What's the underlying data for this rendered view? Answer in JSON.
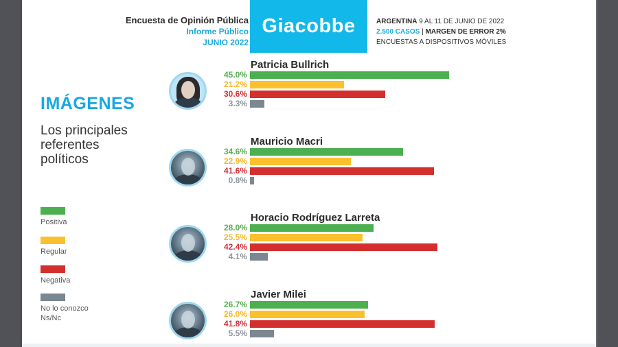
{
  "header": {
    "left_line1": "Encuesta de Opinión Pública",
    "left_line2": "Informe Público",
    "left_line3": "JUNIO 2022",
    "brand": "Giacobbe",
    "right_line1_bold": "ARGENTINA",
    "right_line1_rest": " 9 AL 11 DE JUNIO DE 2022",
    "right_line2_cyan": "2.500 CASOS",
    "right_line2_sep": " | ",
    "right_line2_bold": "MARGEN DE ERROR 2%",
    "right_line3": "ENCUESTAS A DISPOSITIVOS MÓVILES"
  },
  "section": {
    "title": "IMÁGENES",
    "subtitle_lines": [
      "Los principales",
      "referentes",
      "políticos"
    ]
  },
  "colors": {
    "positiva": "#4caf50",
    "regular": "#fbc02d",
    "negativa": "#d32f2f",
    "ns_nc": "#7b8791",
    "brand": "#12b8ea",
    "accent_text": "#18a8e2",
    "pct_positiva": "#5aae52",
    "pct_regular": "#f5b92a",
    "pct_negativa": "#d0323a",
    "pct_ns_nc": "#8c959c"
  },
  "legend": [
    {
      "key": "positiva",
      "label": "Positiva"
    },
    {
      "key": "regular",
      "label": "Regular"
    },
    {
      "key": "negativa",
      "label": "Negativa"
    },
    {
      "key": "ns_nc",
      "label": "No lo conozco\nNs/Nc"
    }
  ],
  "chart_data": {
    "type": "bar",
    "orientation": "horizontal",
    "title": "IMÁGENES — Los principales referentes políticos",
    "categories": [
      "Patricia Bullrich",
      "Mauricio Macri",
      "Horacio Rodríguez Larreta",
      "Javier Milei"
    ],
    "series": [
      {
        "name": "Positiva",
        "values": [
          45.0,
          34.6,
          28.0,
          26.7
        ]
      },
      {
        "name": "Regular",
        "values": [
          21.2,
          22.9,
          25.5,
          26.0
        ]
      },
      {
        "name": "Negativa",
        "values": [
          30.6,
          41.6,
          42.4,
          41.8
        ]
      },
      {
        "name": "No lo conozco Ns/Nc",
        "values": [
          3.3,
          0.8,
          4.1,
          5.5
        ]
      }
    ],
    "labels": [
      [
        "45.0%",
        "21.2%",
        "30.6%",
        "3.3%"
      ],
      [
        "34.6%",
        "22.9%",
        "41.6%",
        "0.8%"
      ],
      [
        "28.0%",
        "25.5%",
        "42.4%",
        "4.1%"
      ],
      [
        "26.7%",
        "26.0%",
        "41.8%",
        "5.5%"
      ]
    ],
    "xlabel": "",
    "ylabel": "",
    "grid": false,
    "legend_position": "left",
    "unit": "%"
  },
  "candidates": [
    {
      "name": "Patricia Bullrich",
      "avatar": "female"
    },
    {
      "name": "Mauricio Macri",
      "avatar": "male"
    },
    {
      "name": "Horacio Rodríguez Larreta",
      "avatar": "male"
    },
    {
      "name": "Javier Milei",
      "avatar": "male"
    }
  ]
}
